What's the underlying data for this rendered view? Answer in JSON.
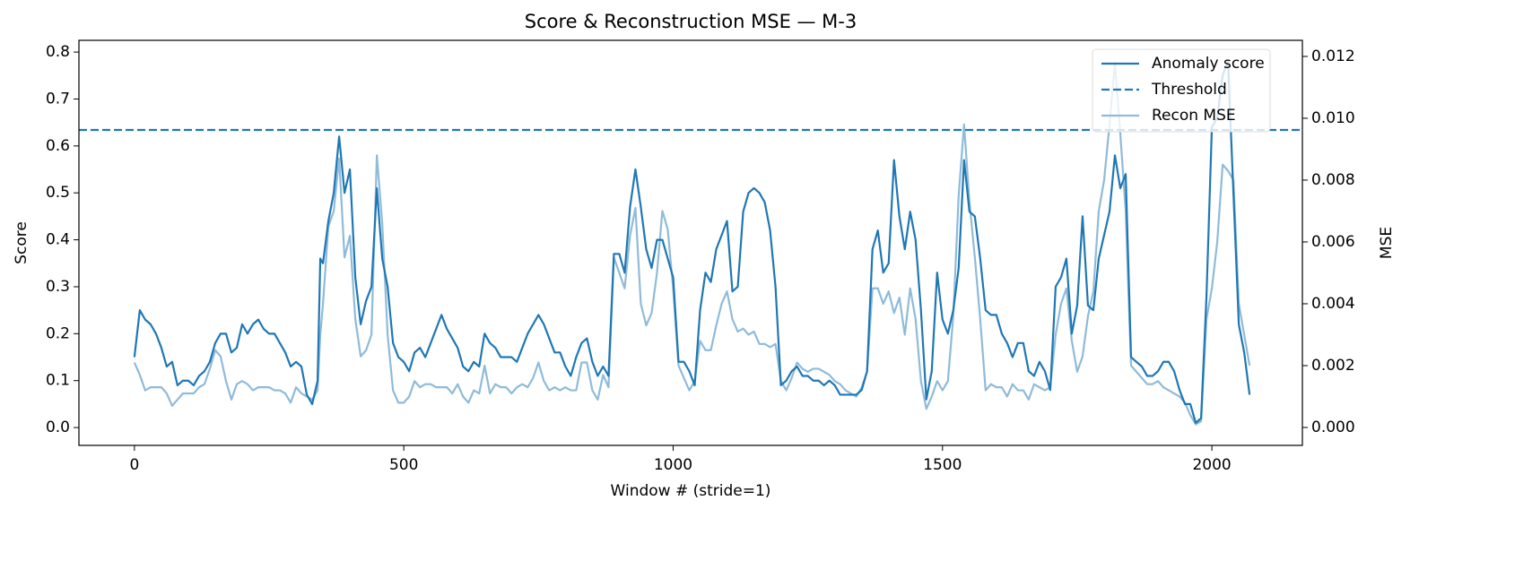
{
  "chart_data": {
    "type": "line",
    "title": "Score & Reconstruction MSE — M-3",
    "xlabel": "Window # (stride=1)",
    "ylabel": "Score",
    "y2label": "MSE",
    "x": [
      0,
      10,
      20,
      30,
      40,
      50,
      60,
      70,
      80,
      90,
      100,
      110,
      120,
      130,
      140,
      150,
      160,
      170,
      180,
      190,
      200,
      210,
      220,
      230,
      240,
      250,
      260,
      270,
      280,
      290,
      300,
      310,
      320,
      330,
      340,
      345,
      350,
      360,
      370,
      380,
      390,
      400,
      410,
      420,
      430,
      440,
      450,
      460,
      470,
      480,
      490,
      500,
      510,
      520,
      530,
      540,
      550,
      560,
      570,
      580,
      590,
      600,
      610,
      620,
      630,
      640,
      650,
      660,
      670,
      680,
      690,
      700,
      710,
      720,
      730,
      740,
      750,
      760,
      770,
      780,
      790,
      800,
      810,
      820,
      830,
      840,
      850,
      860,
      870,
      880,
      890,
      900,
      910,
      920,
      930,
      940,
      950,
      960,
      970,
      980,
      990,
      1000,
      1010,
      1020,
      1030,
      1040,
      1050,
      1060,
      1070,
      1080,
      1090,
      1100,
      1110,
      1120,
      1130,
      1140,
      1150,
      1160,
      1170,
      1180,
      1190,
      1200,
      1210,
      1220,
      1230,
      1240,
      1250,
      1260,
      1270,
      1280,
      1290,
      1300,
      1310,
      1320,
      1330,
      1340,
      1350,
      1360,
      1370,
      1380,
      1390,
      1400,
      1410,
      1420,
      1430,
      1440,
      1450,
      1460,
      1470,
      1480,
      1490,
      1500,
      1510,
      1520,
      1530,
      1540,
      1550,
      1560,
      1570,
      1580,
      1590,
      1600,
      1610,
      1620,
      1630,
      1640,
      1650,
      1660,
      1670,
      1680,
      1690,
      1700,
      1710,
      1720,
      1730,
      1740,
      1750,
      1760,
      1770,
      1780,
      1790,
      1800,
      1810,
      1820,
      1830,
      1840,
      1850,
      1860,
      1870,
      1880,
      1890,
      1900,
      1910,
      1920,
      1930,
      1940,
      1950,
      1960,
      1970,
      1980,
      1990,
      2000,
      2010,
      2020,
      2030,
      2040,
      2050,
      2060,
      2070
    ],
    "series": [
      {
        "name": "Anomaly score",
        "color": "#1f77b4",
        "axis": "y",
        "values": [
          0.15,
          0.25,
          0.23,
          0.22,
          0.2,
          0.17,
          0.13,
          0.14,
          0.09,
          0.1,
          0.1,
          0.09,
          0.11,
          0.12,
          0.14,
          0.18,
          0.2,
          0.2,
          0.16,
          0.17,
          0.22,
          0.2,
          0.22,
          0.23,
          0.21,
          0.2,
          0.2,
          0.18,
          0.16,
          0.13,
          0.14,
          0.13,
          0.07,
          0.05,
          0.1,
          0.36,
          0.35,
          0.44,
          0.5,
          0.62,
          0.5,
          0.55,
          0.32,
          0.22,
          0.27,
          0.3,
          0.51,
          0.36,
          0.3,
          0.18,
          0.15,
          0.14,
          0.12,
          0.16,
          0.17,
          0.15,
          0.18,
          0.21,
          0.24,
          0.21,
          0.19,
          0.17,
          0.13,
          0.12,
          0.14,
          0.13,
          0.2,
          0.18,
          0.17,
          0.15,
          0.15,
          0.15,
          0.14,
          0.17,
          0.2,
          0.22,
          0.24,
          0.22,
          0.19,
          0.16,
          0.16,
          0.13,
          0.11,
          0.15,
          0.18,
          0.19,
          0.14,
          0.11,
          0.13,
          0.11,
          0.37,
          0.37,
          0.33,
          0.47,
          0.55,
          0.47,
          0.38,
          0.34,
          0.4,
          0.4,
          0.36,
          0.32,
          0.14,
          0.14,
          0.12,
          0.09,
          0.25,
          0.33,
          0.31,
          0.38,
          0.41,
          0.44,
          0.29,
          0.3,
          0.46,
          0.5,
          0.51,
          0.5,
          0.48,
          0.42,
          0.3,
          0.09,
          0.1,
          0.12,
          0.13,
          0.11,
          0.11,
          0.1,
          0.1,
          0.09,
          0.1,
          0.09,
          0.07,
          0.07,
          0.07,
          0.07,
          0.08,
          0.12,
          0.38,
          0.42,
          0.33,
          0.35,
          0.57,
          0.45,
          0.38,
          0.46,
          0.4,
          0.25,
          0.06,
          0.12,
          0.33,
          0.23,
          0.2,
          0.25,
          0.34,
          0.57,
          0.46,
          0.45,
          0.36,
          0.25,
          0.24,
          0.24,
          0.2,
          0.18,
          0.15,
          0.18,
          0.18,
          0.12,
          0.11,
          0.14,
          0.12,
          0.08,
          0.3,
          0.32,
          0.36,
          0.2,
          0.26,
          0.45,
          0.26,
          0.25,
          0.36,
          0.41,
          0.46,
          0.58,
          0.51,
          0.54,
          0.15,
          0.14,
          0.13,
          0.11,
          0.11,
          0.12,
          0.14,
          0.14,
          0.12,
          0.08,
          0.05,
          0.05,
          0.01,
          0.02,
          0.28,
          0.64,
          0.66,
          0.75,
          0.78,
          0.5,
          0.22,
          0.16,
          0.07
        ]
      },
      {
        "name": "Recon MSE",
        "color": "#8fbbd9",
        "axis": "y2",
        "values": [
          0.0021,
          0.0017,
          0.0012,
          0.0013,
          0.0013,
          0.0013,
          0.0011,
          0.0007,
          0.0009,
          0.0011,
          0.0011,
          0.0011,
          0.0013,
          0.0014,
          0.0019,
          0.0025,
          0.0023,
          0.0015,
          0.0009,
          0.0014,
          0.0015,
          0.0014,
          0.0012,
          0.0013,
          0.0013,
          0.0013,
          0.0012,
          0.0012,
          0.0011,
          0.0008,
          0.0013,
          0.0011,
          0.001,
          0.0009,
          0.0012,
          0.003,
          0.004,
          0.0065,
          0.007,
          0.0087,
          0.0055,
          0.0062,
          0.0035,
          0.0023,
          0.0025,
          0.003,
          0.0088,
          0.0066,
          0.003,
          0.0012,
          0.0008,
          0.0008,
          0.001,
          0.0015,
          0.0013,
          0.0014,
          0.0014,
          0.0013,
          0.0013,
          0.0013,
          0.0011,
          0.0014,
          0.001,
          0.0008,
          0.0012,
          0.0011,
          0.002,
          0.0011,
          0.0014,
          0.0013,
          0.0013,
          0.0011,
          0.0013,
          0.0014,
          0.0013,
          0.0016,
          0.0021,
          0.0015,
          0.0012,
          0.0013,
          0.0012,
          0.0013,
          0.0012,
          0.0012,
          0.0021,
          0.0021,
          0.0012,
          0.0009,
          0.0017,
          0.0013,
          0.0055,
          0.005,
          0.0045,
          0.0062,
          0.0071,
          0.004,
          0.0033,
          0.0037,
          0.005,
          0.007,
          0.0064,
          0.0045,
          0.002,
          0.0016,
          0.0012,
          0.0015,
          0.0028,
          0.0025,
          0.0025,
          0.0033,
          0.004,
          0.0044,
          0.0035,
          0.0031,
          0.0032,
          0.003,
          0.0031,
          0.0027,
          0.0027,
          0.0026,
          0.0027,
          0.0015,
          0.0012,
          0.0016,
          0.0021,
          0.0019,
          0.0018,
          0.0019,
          0.0019,
          0.0018,
          0.0017,
          0.0015,
          0.0014,
          0.0012,
          0.0011,
          0.001,
          0.0013,
          0.0018,
          0.0045,
          0.0045,
          0.004,
          0.0044,
          0.0037,
          0.0042,
          0.003,
          0.0045,
          0.0035,
          0.0015,
          0.0006,
          0.001,
          0.0015,
          0.0012,
          0.0015,
          0.0036,
          0.0075,
          0.0098,
          0.0073,
          0.0055,
          0.0035,
          0.0012,
          0.0014,
          0.0013,
          0.0013,
          0.001,
          0.0014,
          0.0012,
          0.0012,
          0.0009,
          0.0014,
          0.0013,
          0.0012,
          0.0013,
          0.003,
          0.004,
          0.0045,
          0.0028,
          0.0018,
          0.0023,
          0.0036,
          0.0044,
          0.007,
          0.008,
          0.0098,
          0.0118,
          0.0095,
          0.007,
          0.002,
          0.0018,
          0.0016,
          0.0014,
          0.0014,
          0.0015,
          0.0013,
          0.0012,
          0.0011,
          0.001,
          0.0008,
          0.0004,
          0.0001,
          0.0002,
          0.0035,
          0.0045,
          0.006,
          0.0085,
          0.0083,
          0.008,
          0.004,
          0.003,
          0.002
        ]
      }
    ],
    "threshold": {
      "name": "Threshold",
      "value": 0.634,
      "color": "#1f77b4"
    },
    "xlim": [
      -103,
      2168
    ],
    "xticks": [
      0,
      500,
      1000,
      1500,
      2000
    ],
    "ylim": [
      -0.038,
      0.825
    ],
    "yticks": [
      {
        "value": 0,
        "label": "0.0"
      },
      0.1,
      0.2,
      0.3,
      0.4,
      0.5,
      0.6,
      0.7,
      0.8
    ],
    "y2lim": [
      -0.00058,
      0.01252
    ],
    "y2ticks": [
      {
        "value": 0,
        "label": "0.000"
      },
      {
        "value": 0.002,
        "label": "0.002"
      },
      {
        "value": 0.004,
        "label": "0.004"
      },
      {
        "value": 0.006,
        "label": "0.006"
      },
      {
        "value": 0.008,
        "label": "0.008"
      },
      {
        "value": 0.01,
        "label": "0.010"
      },
      {
        "value": 0.012,
        "label": "0.012"
      }
    ],
    "legend": "upper right",
    "grid": false
  }
}
